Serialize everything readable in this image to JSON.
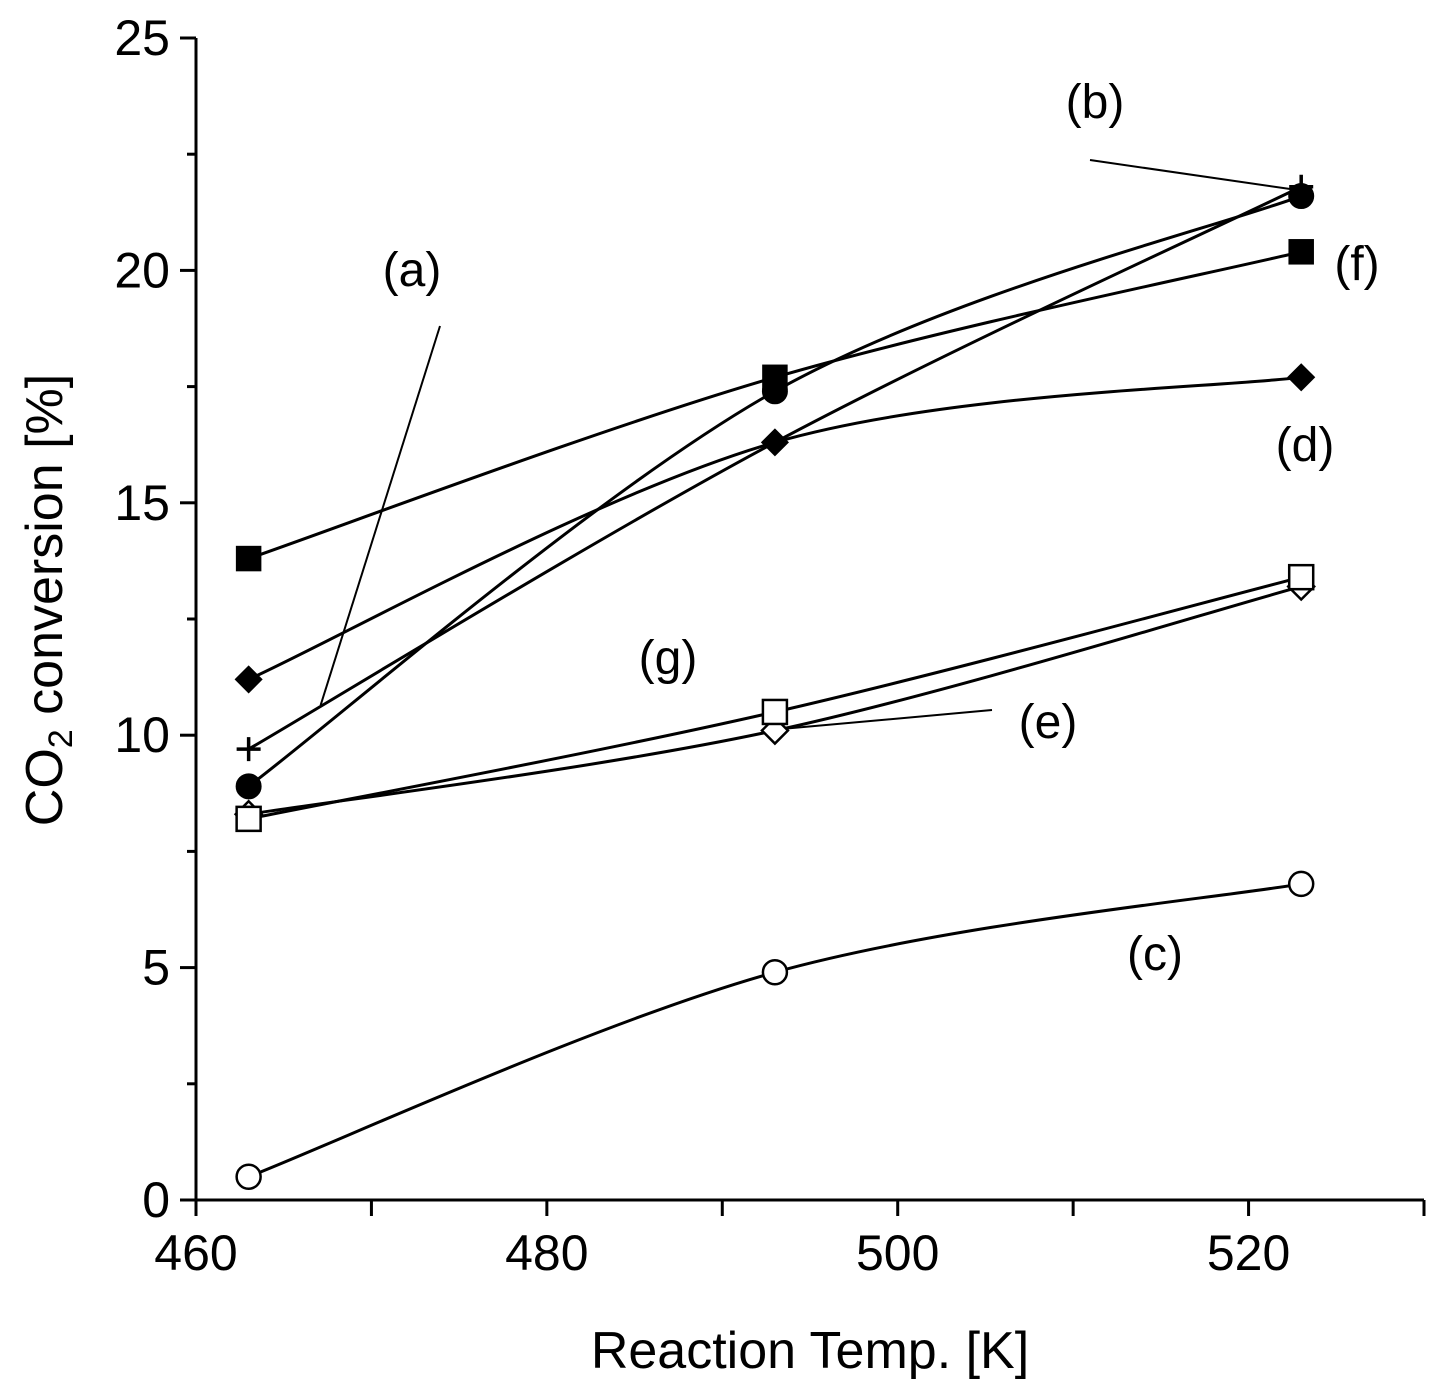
{
  "chart_data": {
    "type": "line",
    "xlabel": "Reaction Temp. [K]",
    "ylabel_main": "CO",
    "ylabel_sub": "2",
    "ylabel_rest": " conversion [%]",
    "xlim": [
      460,
      530
    ],
    "ylim": [
      0,
      25
    ],
    "x_ticks": [
      460,
      480,
      500,
      520
    ],
    "x_minor_ticks": [
      470,
      490,
      510,
      530
    ],
    "y_ticks": [
      0,
      5,
      10,
      15,
      20,
      25
    ],
    "y_minor_ticks": [
      2.5,
      7.5,
      12.5,
      17.5,
      22.5
    ],
    "grid": false,
    "x": [
      463,
      493,
      523
    ],
    "series": [
      {
        "name": "(a)",
        "marker": "plus",
        "values": [
          9.7,
          16.3,
          21.8
        ]
      },
      {
        "name": "(b)",
        "marker": "filled-circle",
        "values": [
          8.9,
          17.4,
          21.6
        ]
      },
      {
        "name": "(c)",
        "marker": "open-circle",
        "values": [
          0.5,
          4.9,
          6.8
        ]
      },
      {
        "name": "(d)",
        "marker": "filled-diamond",
        "values": [
          11.2,
          16.3,
          17.7
        ]
      },
      {
        "name": "(e)",
        "marker": "open-diamond",
        "values": [
          8.3,
          10.1,
          13.2
        ]
      },
      {
        "name": "(f)",
        "marker": "filled-square",
        "values": [
          13.8,
          17.7,
          20.4
        ]
      },
      {
        "name": "(g)",
        "marker": "open-square",
        "values": [
          8.2,
          10.5,
          13.4
        ]
      }
    ],
    "annotations": [
      {
        "id": "a",
        "text": "(a)"
      },
      {
        "id": "b",
        "text": "(b)"
      },
      {
        "id": "c",
        "text": "(c)"
      },
      {
        "id": "d",
        "text": "(d)"
      },
      {
        "id": "e",
        "text": "(e)"
      },
      {
        "id": "f",
        "text": "(f)"
      },
      {
        "id": "g",
        "text": "(g)"
      }
    ]
  }
}
